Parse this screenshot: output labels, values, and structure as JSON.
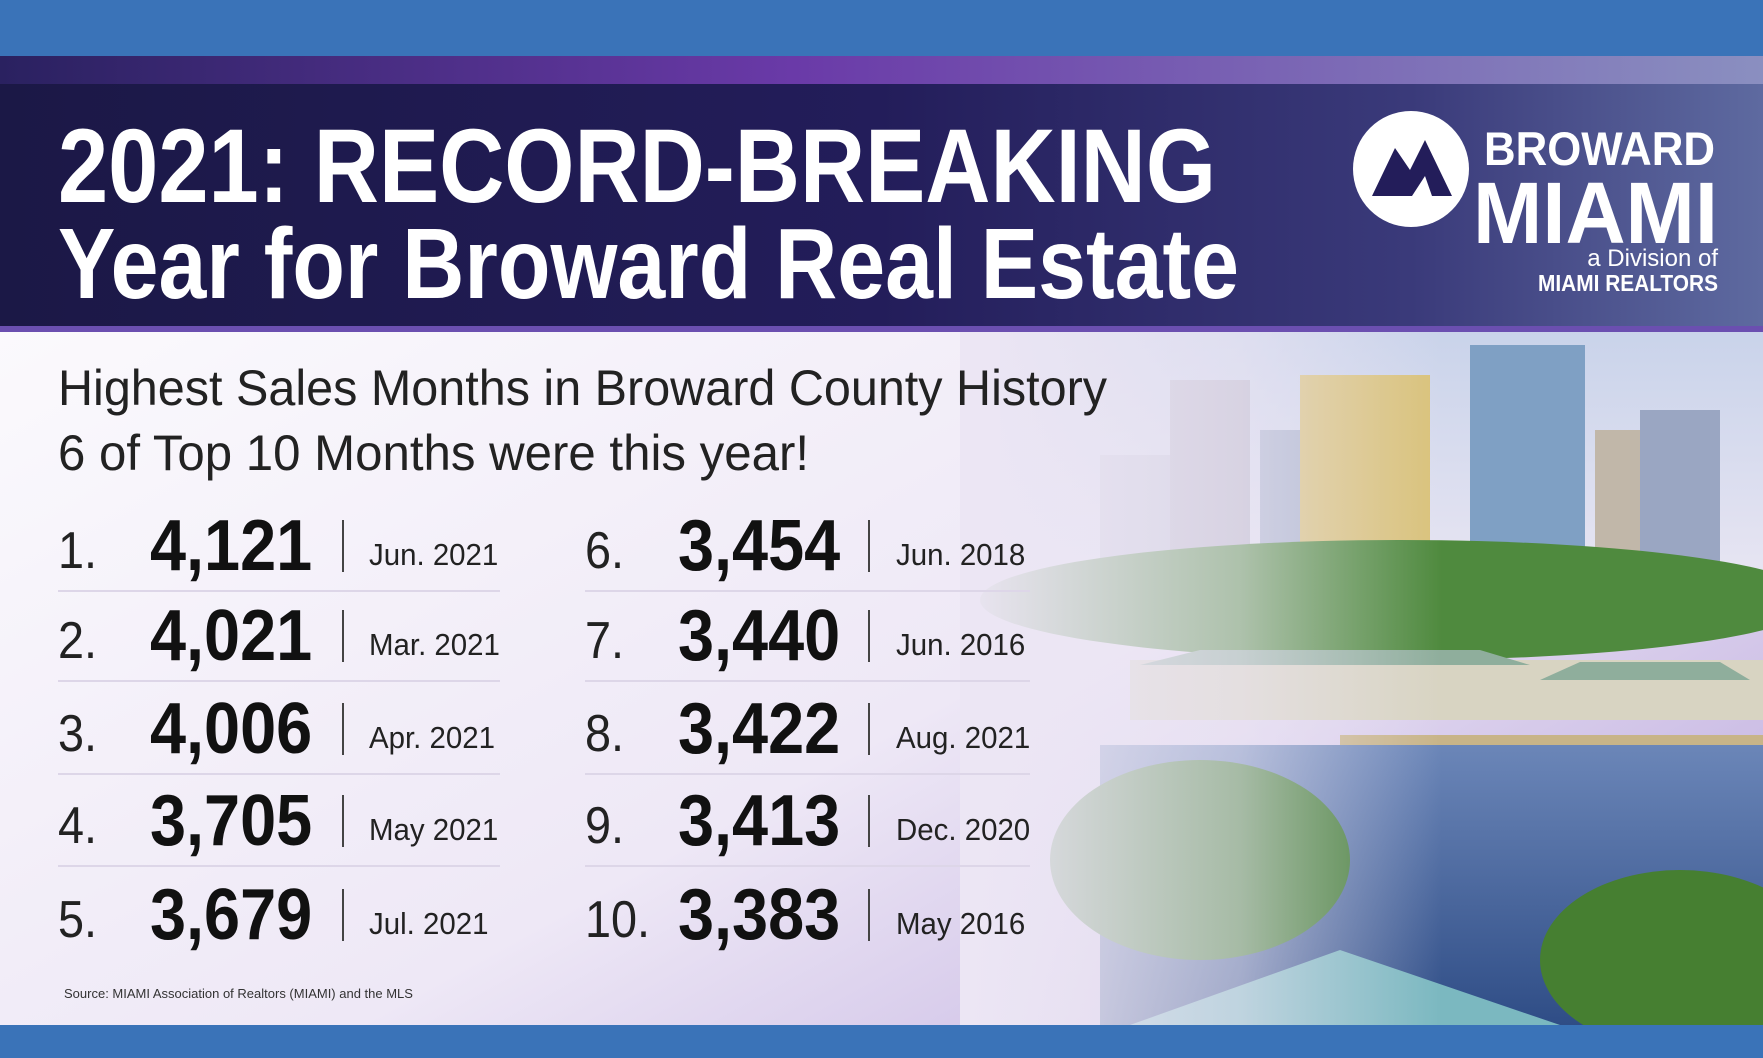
{
  "header": {
    "title_line1": "2021: RECORD-BREAKING",
    "title_line2": "Year for Broward Real Estate"
  },
  "logo": {
    "name_top": "BROWARD",
    "name_bottom": "MIAMI",
    "division": "a Division of",
    "organization": "MIAMI REALTORS"
  },
  "subtitle": {
    "line1": "Highest Sales Months in Broward County History",
    "line2": "6 of Top 10 Months were this year!"
  },
  "rankings": [
    {
      "rank": "1.",
      "sales": "4,121",
      "month": "Jun. 2021"
    },
    {
      "rank": "2.",
      "sales": "4,021",
      "month": "Mar. 2021"
    },
    {
      "rank": "3.",
      "sales": "4,006",
      "month": "Apr. 2021"
    },
    {
      "rank": "4.",
      "sales": "3,705",
      "month": "May 2021"
    },
    {
      "rank": "5.",
      "sales": "3,679",
      "month": "Jul. 2021"
    },
    {
      "rank": "6.",
      "sales": "3,454",
      "month": "Jun. 2018"
    },
    {
      "rank": "7.",
      "sales": "3,440",
      "month": "Jun. 2016"
    },
    {
      "rank": "8.",
      "sales": "3,422",
      "month": "Aug. 2021"
    },
    {
      "rank": "9.",
      "sales": "3,413",
      "month": "Dec. 2020"
    },
    {
      "rank": "10.",
      "sales": "3,383",
      "month": "May 2016"
    }
  ],
  "source": "Source: MIAMI Association of Realtors (MIAMI) and the MLS"
}
